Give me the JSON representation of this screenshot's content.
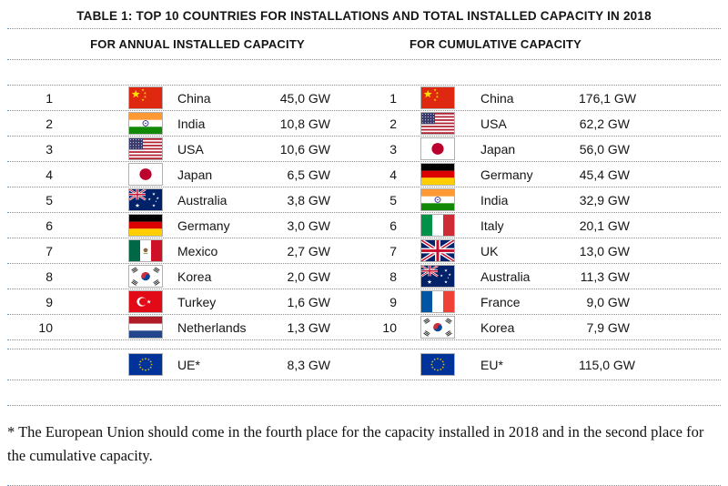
{
  "title": "TABLE 1: TOP 10 COUNTRIES FOR INSTALLATIONS AND TOTAL INSTALLED CAPACITY IN 2018",
  "columns": {
    "annual_header": "FOR ANNUAL INSTALLED CAPACITY",
    "cumulative_header": "FOR CUMULATIVE CAPACITY"
  },
  "annual": {
    "rows": [
      {
        "rank": "1",
        "flag": "china-flag",
        "country": "China",
        "value": "45,0 GW"
      },
      {
        "rank": "2",
        "flag": "india-flag",
        "country": "India",
        "value": "10,8 GW"
      },
      {
        "rank": "3",
        "flag": "usa-flag",
        "country": "USA",
        "value": "10,6 GW"
      },
      {
        "rank": "4",
        "flag": "japan-flag",
        "country": "Japan",
        "value": "6,5 GW"
      },
      {
        "rank": "5",
        "flag": "australia-flag",
        "country": "Australia",
        "value": "3,8 GW"
      },
      {
        "rank": "6",
        "flag": "germany-flag",
        "country": "Germany",
        "value": "3,0 GW"
      },
      {
        "rank": "7",
        "flag": "mexico-flag",
        "country": "Mexico",
        "value": "2,7 GW"
      },
      {
        "rank": "8",
        "flag": "korea-flag",
        "country": "Korea",
        "value": "2,0 GW"
      },
      {
        "rank": "9",
        "flag": "turkey-flag",
        "country": "Turkey",
        "value": "1,6 GW"
      },
      {
        "rank": "10",
        "flag": "netherlands-flag",
        "country": "Netherlands",
        "value": "1,3 GW"
      }
    ],
    "eu_row": {
      "rank": "",
      "flag": "eu-flag",
      "country": "UE*",
      "value": "8,3 GW"
    }
  },
  "cumulative": {
    "rows": [
      {
        "rank": "1",
        "flag": "china-flag",
        "country": "China",
        "value": "176,1 GW"
      },
      {
        "rank": "2",
        "flag": "usa-flag",
        "country": "USA",
        "value": "62,2 GW"
      },
      {
        "rank": "3",
        "flag": "japan-flag",
        "country": "Japan",
        "value": "56,0 GW"
      },
      {
        "rank": "4",
        "flag": "germany-flag",
        "country": "Germany",
        "value": "45,4 GW"
      },
      {
        "rank": "5",
        "flag": "india-flag",
        "country": "India",
        "value": "32,9 GW"
      },
      {
        "rank": "6",
        "flag": "italy-flag",
        "country": "Italy",
        "value": "20,1 GW"
      },
      {
        "rank": "7",
        "flag": "uk-flag",
        "country": "UK",
        "value": "13,0 GW"
      },
      {
        "rank": "8",
        "flag": "australia-flag",
        "country": "Australia",
        "value": "11,3 GW"
      },
      {
        "rank": "9",
        "flag": "france-flag",
        "country": "France",
        "value": "9,0 GW"
      },
      {
        "rank": "10",
        "flag": "korea-flag",
        "country": "Korea",
        "value": "7,9 GW"
      }
    ],
    "eu_row": {
      "rank": "",
      "flag": "eu-flag",
      "country": "EU*",
      "value": "115,0 GW"
    }
  },
  "footnote": "* The European Union should come in the fourth place for the capacity installed in 2018 and in the second place for the cumulative capacity.",
  "colors": {
    "dotted_line": "#5b9bd5",
    "text": "#151515"
  }
}
